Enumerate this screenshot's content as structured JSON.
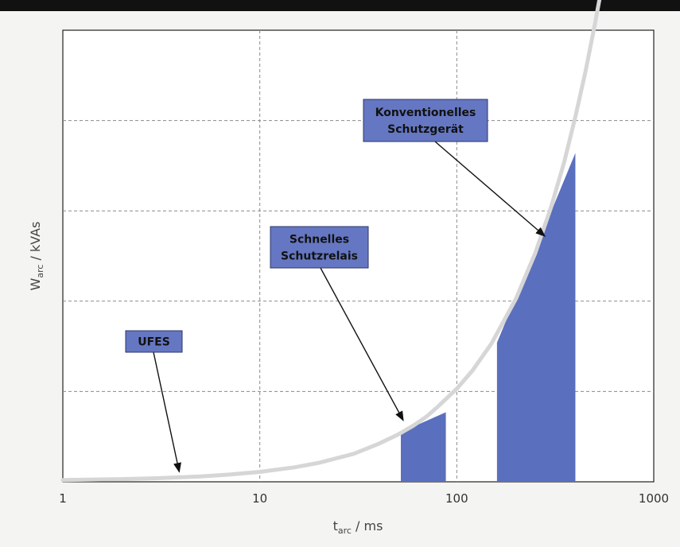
{
  "chart_data": {
    "type": "area",
    "title": "",
    "xlabel": {
      "main": "t",
      "sub": "arc",
      "unit": " / ms"
    },
    "ylabel": {
      "main": "W",
      "sub": "arc",
      "unit": " / kVAs"
    },
    "x_scale": "log",
    "xlim": [
      1,
      1000
    ],
    "ylim": [
      0,
      5
    ],
    "x_ticks": [
      1,
      10,
      100,
      1000
    ],
    "x_tick_labels": [
      "1",
      "10",
      "100",
      "1000"
    ],
    "y_grid": [
      1,
      2,
      3,
      4,
      5
    ],
    "grid": true,
    "curve": {
      "x": [
        1,
        2,
        3,
        5,
        7,
        10,
        15,
        20,
        30,
        40,
        50,
        60,
        70,
        80,
        100,
        120,
        150,
        200,
        250,
        300,
        350,
        400,
        450,
        500,
        530
      ],
      "y": [
        0.02,
        0.03,
        0.04,
        0.06,
        0.08,
        0.11,
        0.16,
        0.21,
        0.31,
        0.42,
        0.52,
        0.62,
        0.72,
        0.83,
        1.03,
        1.23,
        1.53,
        2.03,
        2.53,
        3.03,
        3.53,
        4.04,
        4.54,
        5.04,
        5.34
      ]
    },
    "regions": [
      {
        "x": [
          52,
          88
        ],
        "y_top": [
          0.55,
          0.77
        ]
      },
      {
        "x": [
          160,
          400
        ],
        "y_top": [
          1.54,
          3.64
        ]
      }
    ],
    "annotations": [
      {
        "lines": [
          "UFES"
        ],
        "target": [
          3.9,
          0.11
        ]
      },
      {
        "lines": [
          "Schnelles",
          "Schutzrelais"
        ],
        "target": [
          53.5,
          0.68
        ]
      },
      {
        "lines": [
          "Konventionelles",
          "Schutzgerät"
        ],
        "target": [
          280,
          2.72
        ]
      }
    ]
  }
}
